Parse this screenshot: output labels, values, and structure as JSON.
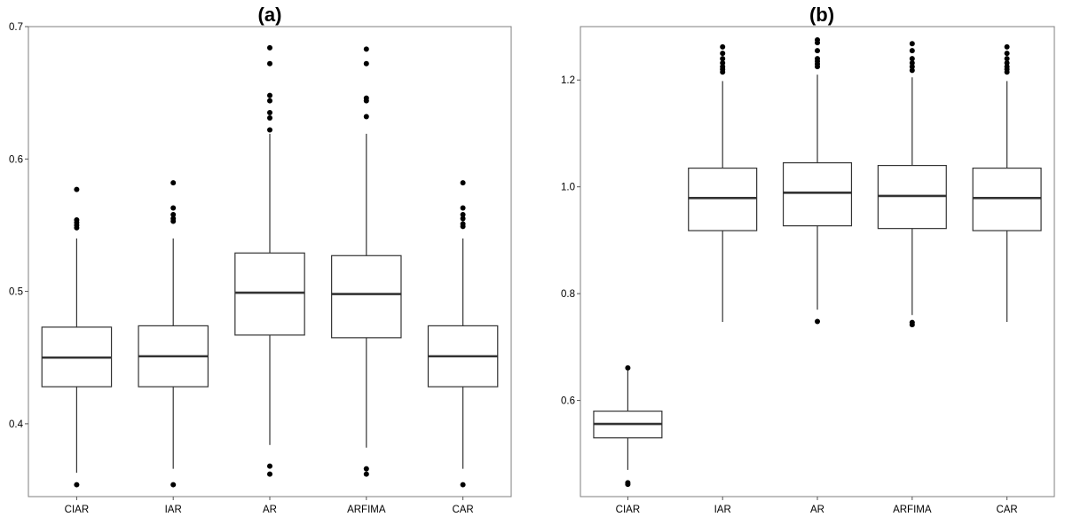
{
  "chart_data": [
    {
      "type": "boxplot",
      "title": "(a)",
      "xlabel": "",
      "ylabel": "",
      "categories": [
        "CIAR",
        "IAR",
        "AR",
        "ARFIMA",
        "CAR"
      ],
      "ylim": [
        0.345,
        0.7
      ],
      "yticks": [
        0.4,
        0.5,
        0.6,
        0.7
      ],
      "ytick_labels": [
        "0.4",
        "0.5",
        "0.6",
        "0.7"
      ],
      "grid": false,
      "boxes": [
        {
          "category": "CIAR",
          "whisker_low": 0.363,
          "q1": 0.428,
          "median": 0.45,
          "q3": 0.473,
          "whisker_high": 0.54,
          "outliers": [
            0.354,
            0.548,
            0.55,
            0.552,
            0.554,
            0.577
          ]
        },
        {
          "category": "IAR",
          "whisker_low": 0.366,
          "q1": 0.428,
          "median": 0.451,
          "q3": 0.474,
          "whisker_high": 0.54,
          "outliers": [
            0.354,
            0.553,
            0.555,
            0.558,
            0.563,
            0.582
          ]
        },
        {
          "category": "AR",
          "whisker_low": 0.384,
          "q1": 0.467,
          "median": 0.499,
          "q3": 0.529,
          "whisker_high": 0.619,
          "outliers": [
            0.362,
            0.368,
            0.622,
            0.631,
            0.635,
            0.644,
            0.648,
            0.672,
            0.684
          ]
        },
        {
          "category": "ARFIMA",
          "whisker_low": 0.382,
          "q1": 0.465,
          "median": 0.498,
          "q3": 0.527,
          "whisker_high": 0.619,
          "outliers": [
            0.362,
            0.366,
            0.632,
            0.644,
            0.646,
            0.672,
            0.683
          ]
        },
        {
          "category": "CAR",
          "whisker_low": 0.366,
          "q1": 0.428,
          "median": 0.451,
          "q3": 0.474,
          "whisker_high": 0.54,
          "outliers": [
            0.354,
            0.549,
            0.551,
            0.555,
            0.558,
            0.563,
            0.582
          ]
        }
      ]
    },
    {
      "type": "boxplot",
      "title": "(b)",
      "xlabel": "",
      "ylabel": "",
      "categories": [
        "CIAR",
        "IAR",
        "AR",
        "ARFIMA",
        "CAR"
      ],
      "ylim": [
        0.42,
        1.3
      ],
      "yticks": [
        0.6,
        0.8,
        1.0,
        1.2
      ],
      "ytick_labels": [
        "0.6",
        "0.8",
        "1.0",
        "1.2"
      ],
      "grid": false,
      "boxes": [
        {
          "category": "CIAR",
          "whisker_low": 0.47,
          "q1": 0.53,
          "median": 0.556,
          "q3": 0.58,
          "whisker_high": 0.656,
          "outliers": [
            0.443,
            0.446,
            0.661
          ]
        },
        {
          "category": "IAR",
          "whisker_low": 0.747,
          "q1": 0.918,
          "median": 0.979,
          "q3": 1.035,
          "whisker_high": 1.198,
          "outliers": [
            1.215,
            1.22,
            1.225,
            1.232,
            1.24,
            1.25,
            1.262
          ]
        },
        {
          "category": "AR",
          "whisker_low": 0.77,
          "q1": 0.927,
          "median": 0.989,
          "q3": 1.045,
          "whisker_high": 1.21,
          "outliers": [
            0.748,
            1.225,
            1.23,
            1.235,
            1.24,
            1.255,
            1.27,
            1.275
          ]
        },
        {
          "category": "ARFIMA",
          "whisker_low": 0.76,
          "q1": 0.922,
          "median": 0.983,
          "q3": 1.04,
          "whisker_high": 1.205,
          "outliers": [
            0.742,
            0.746,
            1.218,
            1.225,
            1.232,
            1.24,
            1.255,
            1.268
          ]
        },
        {
          "category": "CAR",
          "whisker_low": 0.747,
          "q1": 0.918,
          "median": 0.979,
          "q3": 1.035,
          "whisker_high": 1.198,
          "outliers": [
            1.215,
            1.22,
            1.225,
            1.232,
            1.24,
            1.25,
            1.262
          ]
        }
      ]
    }
  ],
  "colors": {
    "box_fill": "#ffffff",
    "box_stroke": "#333333",
    "median": "#333333",
    "outlier": "#000000",
    "frame": "#7f7f7f"
  }
}
